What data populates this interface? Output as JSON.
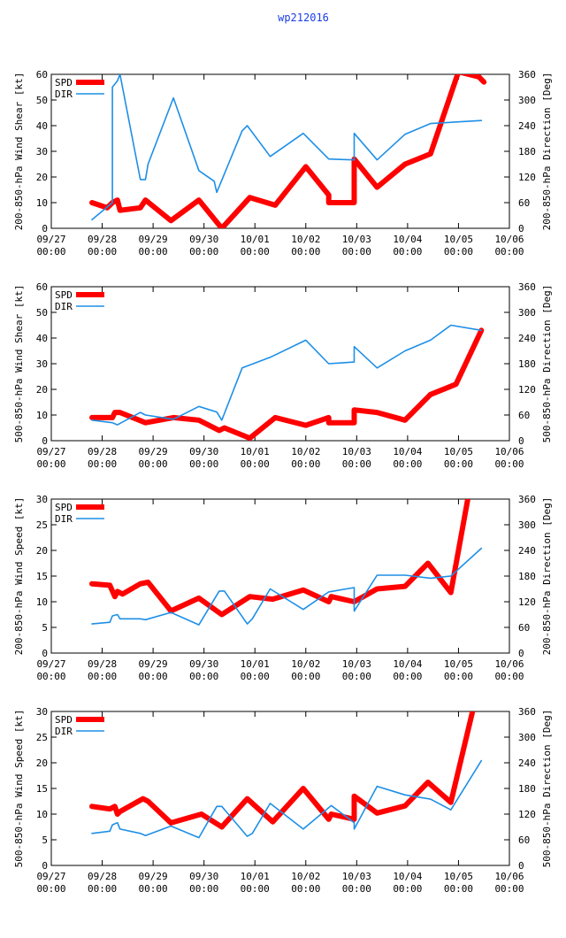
{
  "title": "wp212016",
  "colors": {
    "spd": "#ff0000",
    "dir": "#1e8fe6",
    "title": "#1a3ee6"
  },
  "x_ticks": [
    {
      "date": "09/27",
      "time": "00:00"
    },
    {
      "date": "09/28",
      "time": "00:00"
    },
    {
      "date": "09/29",
      "time": "00:00"
    },
    {
      "date": "09/30",
      "time": "00:00"
    },
    {
      "date": "10/01",
      "time": "00:00"
    },
    {
      "date": "10/02",
      "time": "00:00"
    },
    {
      "date": "10/03",
      "time": "00:00"
    },
    {
      "date": "10/04",
      "time": "00:00"
    },
    {
      "date": "10/05",
      "time": "00:00"
    },
    {
      "date": "10/06",
      "time": "00:00"
    }
  ],
  "chart_data": [
    {
      "type": "line",
      "ylabel": "200-850-hPa Wind Shear [kt]",
      "y2label": "200-850-hPa Direction [Deg]",
      "xlim": [
        0,
        9
      ],
      "ylim": [
        0,
        60
      ],
      "y2lim": [
        0,
        360
      ],
      "yticks": [
        0,
        10,
        20,
        30,
        40,
        50,
        60
      ],
      "y2ticks": [
        0,
        60,
        120,
        180,
        240,
        300,
        360
      ],
      "legend": [
        "SPD",
        "DIR"
      ],
      "series": [
        {
          "name": "SPD",
          "axis": "left",
          "x": [
            0.8,
            1.1,
            1.2,
            1.3,
            1.35,
            1.75,
            1.85,
            2.35,
            2.9,
            3.35,
            3.9,
            4.4,
            5.0,
            5.45,
            5.45,
            5.95,
            5.95,
            6.4,
            6.95,
            7.45,
            8.0,
            8.4,
            8.5
          ],
          "y": [
            10,
            8,
            10,
            11,
            7,
            8,
            11,
            3,
            11,
            0,
            12,
            9,
            24,
            13,
            10,
            10,
            27,
            16,
            25,
            29,
            61,
            59,
            57
          ]
        },
        {
          "name": "DIR",
          "axis": "right",
          "x": [
            0.8,
            1.2,
            1.2,
            1.3,
            1.35,
            1.75,
            1.85,
            1.9,
            2.4,
            2.9,
            3.2,
            3.25,
            3.75,
            3.85,
            4.3,
            4.95,
            5.45,
            5.95,
            5.95,
            6.4,
            6.95,
            7.45,
            8.45
          ],
          "y": [
            20,
            60,
            330,
            345,
            360,
            114,
            114,
            150,
            305,
            135,
            110,
            84,
            228,
            240,
            168,
            222,
            162,
            160,
            222,
            160,
            220,
            245,
            252
          ]
        }
      ]
    },
    {
      "type": "line",
      "ylabel": "500-850-hPa Wind Shear [kt]",
      "y2label": "500-850-hPa Direction [Deg]",
      "xlim": [
        0,
        9
      ],
      "ylim": [
        0,
        60
      ],
      "y2lim": [
        0,
        360
      ],
      "yticks": [
        0,
        10,
        20,
        30,
        40,
        50,
        60
      ],
      "y2ticks": [
        0,
        60,
        120,
        180,
        240,
        300,
        360
      ],
      "legend": [
        "SPD",
        "DIR"
      ],
      "series": [
        {
          "name": "SPD",
          "axis": "left",
          "x": [
            0.8,
            1.2,
            1.25,
            1.35,
            1.85,
            2.4,
            2.9,
            3.3,
            3.4,
            3.9,
            4.4,
            5.0,
            5.45,
            5.45,
            5.95,
            5.95,
            6.4,
            6.95,
            7.45,
            7.95,
            8.45
          ],
          "y": [
            9,
            9,
            11,
            11,
            7,
            9,
            8,
            4,
            5,
            1,
            9,
            6,
            9,
            7,
            7,
            12,
            11,
            8,
            18,
            22,
            43
          ]
        },
        {
          "name": "DIR",
          "axis": "right",
          "x": [
            0.8,
            1.2,
            1.3,
            1.75,
            1.85,
            2.4,
            2.9,
            3.25,
            3.35,
            3.75,
            4.3,
            5.0,
            5.45,
            5.95,
            5.95,
            6.4,
            6.95,
            7.45,
            7.85,
            8.45
          ],
          "y": [
            48,
            42,
            37,
            66,
            60,
            50,
            80,
            67,
            48,
            170,
            195,
            235,
            180,
            184,
            220,
            170,
            210,
            235,
            270,
            258
          ]
        }
      ]
    },
    {
      "type": "line",
      "ylabel": "200-850-hPa Wind Speed [kt]",
      "y2label": "200-850-hPa Direction [Deg]",
      "xlim": [
        0,
        9
      ],
      "ylim": [
        0,
        30
      ],
      "y2lim": [
        0,
        360
      ],
      "yticks": [
        0,
        5,
        10,
        15,
        20,
        25,
        30
      ],
      "y2ticks": [
        0,
        60,
        120,
        180,
        240,
        300,
        360
      ],
      "legend": [
        "SPD",
        "DIR"
      ],
      "series": [
        {
          "name": "SPD",
          "axis": "left",
          "x": [
            0.8,
            1.15,
            1.25,
            1.3,
            1.4,
            1.75,
            1.9,
            2.35,
            2.9,
            3.35,
            3.9,
            4.35,
            4.95,
            5.45,
            5.5,
            5.95,
            6.4,
            6.95,
            7.4,
            7.85,
            8.2
          ],
          "y": [
            13.5,
            13.2,
            11,
            12,
            11.5,
            13.5,
            13.8,
            8.2,
            10.7,
            7.5,
            11,
            10.5,
            12.3,
            10,
            11,
            10,
            12.5,
            13,
            17.5,
            11.8,
            31
          ]
        },
        {
          "name": "DIR",
          "axis": "right",
          "x": [
            0.8,
            1.15,
            1.2,
            1.3,
            1.35,
            1.75,
            1.85,
            2.35,
            2.9,
            3.3,
            3.4,
            3.85,
            3.95,
            4.3,
            4.95,
            5.45,
            5.95,
            5.95,
            6.4,
            6.95,
            7.45,
            7.85,
            8.45
          ],
          "y": [
            68,
            72,
            87,
            90,
            80,
            80,
            78,
            95,
            66,
            145,
            145,
            68,
            80,
            150,
            102,
            143,
            153,
            98,
            182,
            182,
            175,
            180,
            245
          ]
        }
      ]
    },
    {
      "type": "line",
      "ylabel": "500-850-hPa Wind Speed [kt]",
      "y2label": "500-850-hPa Direction [Deg]",
      "xlim": [
        0,
        9
      ],
      "ylim": [
        0,
        30
      ],
      "y2lim": [
        0,
        360
      ],
      "yticks": [
        0,
        5,
        10,
        15,
        20,
        25,
        30
      ],
      "y2ticks": [
        0,
        60,
        120,
        180,
        240,
        300,
        360
      ],
      "legend": [
        "SPD",
        "DIR"
      ],
      "series": [
        {
          "name": "SPD",
          "axis": "left",
          "x": [
            0.8,
            1.15,
            1.25,
            1.3,
            1.35,
            1.8,
            1.9,
            2.35,
            2.95,
            3.35,
            3.85,
            4.35,
            4.95,
            5.45,
            5.5,
            5.95,
            5.95,
            6.4,
            6.95,
            7.4,
            7.85,
            8.3
          ],
          "y": [
            11.5,
            11,
            11.5,
            10,
            10.5,
            13,
            12.5,
            8.3,
            10,
            7.5,
            13,
            8.5,
            15,
            9,
            10,
            9,
            13.5,
            10.2,
            11.6,
            16.2,
            12.3,
            31
          ]
        },
        {
          "name": "DIR",
          "axis": "right",
          "x": [
            0.8,
            1.15,
            1.2,
            1.3,
            1.35,
            1.75,
            1.85,
            2.35,
            2.9,
            3.25,
            3.35,
            3.85,
            3.95,
            4.3,
            4.95,
            5.45,
            5.5,
            5.95,
            5.95,
            6.4,
            6.95,
            7.45,
            7.85,
            8.45
          ],
          "y": [
            75,
            80,
            95,
            100,
            85,
            75,
            70,
            92,
            65,
            138,
            138,
            68,
            75,
            145,
            85,
            135,
            140,
            100,
            85,
            185,
            165,
            155,
            130,
            245
          ]
        }
      ]
    }
  ]
}
